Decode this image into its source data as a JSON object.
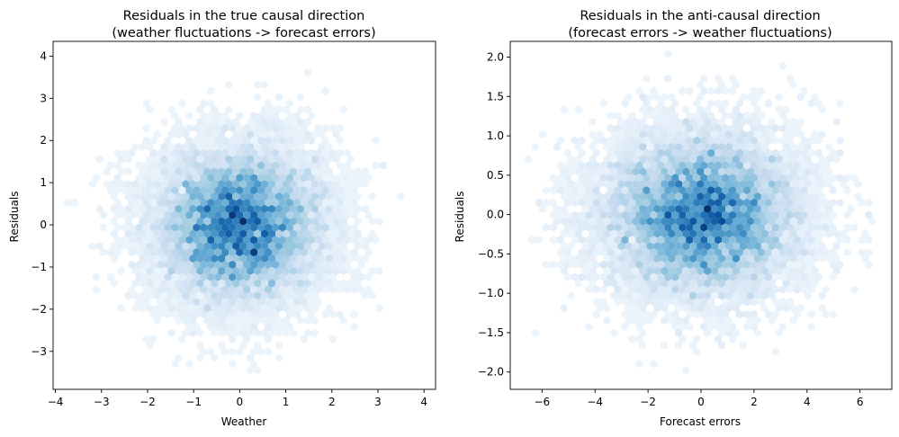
{
  "chart_data": [
    {
      "type": "heatmap",
      "subtype": "hexbin",
      "colormap": "Blues",
      "title_lines": [
        "Residuals in the true causal direction",
        "(weather fluctuations -> forecast errors)"
      ],
      "xlabel": "Weather",
      "ylabel": "Residuals",
      "xlim": [
        -4.05,
        4.25
      ],
      "ylim": [
        -3.9,
        4.35
      ],
      "xticks": [
        -4,
        -3,
        -2,
        -1,
        0,
        1,
        2,
        3,
        4
      ],
      "xtick_labels": [
        "−4",
        "−3",
        "−2",
        "−1",
        "0",
        "1",
        "2",
        "3",
        "4"
      ],
      "yticks": [
        -3,
        -2,
        -1,
        0,
        1,
        2,
        3,
        4
      ],
      "ytick_labels": [
        "−3",
        "−2",
        "−1",
        "0",
        "1",
        "2",
        "3",
        "4"
      ],
      "distribution": {
        "x_mean": 0,
        "x_sd": 1.0,
        "y_mean": 0,
        "y_sd": 1.0,
        "correlation": 0
      },
      "x_range_observed": [
        -3.8,
        3.8
      ],
      "y_range_observed": [
        -3.5,
        4.0
      ],
      "grid": false,
      "legend": "none"
    },
    {
      "type": "heatmap",
      "subtype": "hexbin",
      "colormap": "Blues",
      "title_lines": [
        "Residuals in the anti-causal direction",
        "(forecast errors -> weather fluctuations)"
      ],
      "xlabel": "Forecast errors",
      "ylabel": "Residuals",
      "xlim": [
        -7.2,
        7.2
      ],
      "ylim": [
        -2.22,
        2.2
      ],
      "xticks": [
        -6,
        -4,
        -2,
        0,
        2,
        4,
        6
      ],
      "xtick_labels": [
        "−6",
        "−4",
        "−2",
        "0",
        "2",
        "4",
        "6"
      ],
      "yticks": [
        -2.0,
        -1.5,
        -1.0,
        -0.5,
        0.0,
        0.5,
        1.0,
        1.5,
        2.0
      ],
      "ytick_labels": [
        "−2.0",
        "−1.5",
        "−1.0",
        "−0.5",
        "0.0",
        "0.5",
        "1.0",
        "1.5",
        "2.0"
      ],
      "distribution": {
        "x_mean": 0,
        "x_sd": 2.0,
        "y_mean": 0,
        "y_sd": 0.55,
        "correlation": 0
      },
      "x_range_observed": [
        -6.5,
        6.5
      ],
      "y_range_observed": [
        -2.05,
        2.05
      ],
      "grid": false,
      "legend": "none"
    }
  ]
}
